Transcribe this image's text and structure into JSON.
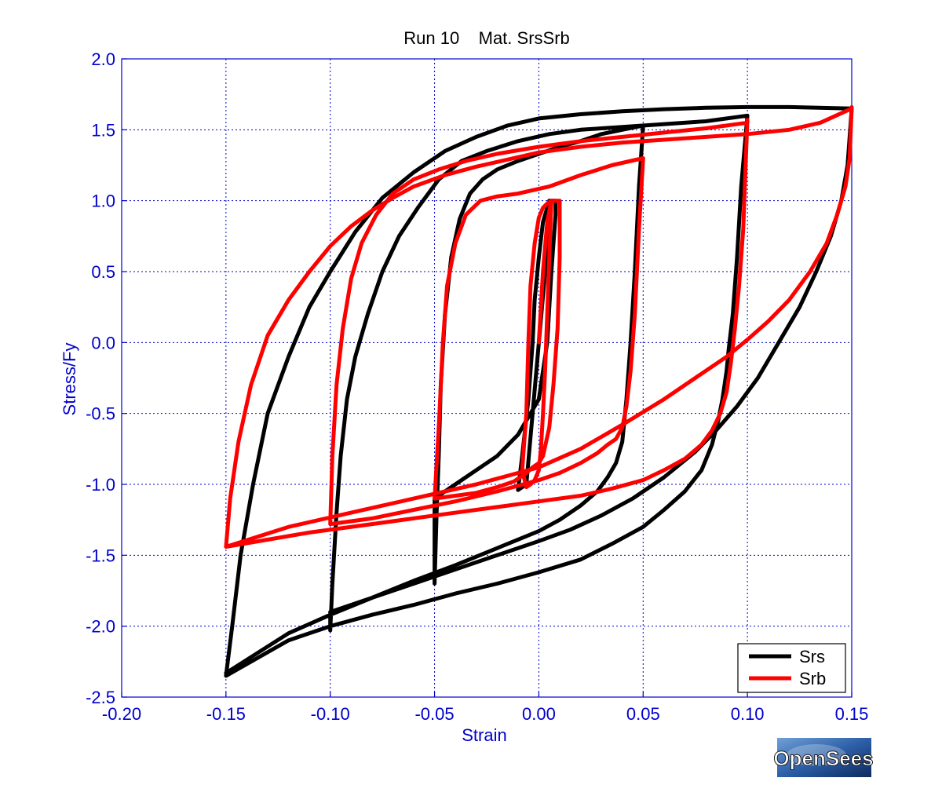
{
  "chart_data": {
    "type": "line",
    "title": "Run 10    Mat. SrsSrb",
    "xlabel": "Strain",
    "ylabel": "Stress/Fy",
    "xlim": [
      -0.2,
      0.15
    ],
    "ylim": [
      -2.5,
      2.0
    ],
    "x_ticks": [
      -0.2,
      -0.15,
      -0.1,
      -0.05,
      0.0,
      0.05,
      0.1,
      0.15
    ],
    "x_tick_labels": [
      "-0.20",
      "-0.15",
      "-0.10",
      "-0.05",
      "0.00",
      "0.05",
      "0.10",
      "0.15"
    ],
    "y_ticks": [
      2.0,
      1.5,
      1.0,
      0.5,
      0.0,
      -0.5,
      -1.0,
      -1.5,
      -2.0,
      -2.5
    ],
    "y_tick_labels": [
      "2.0",
      "1.5",
      "1.0",
      "0.5",
      "0.0",
      "-0.5",
      "-1.0",
      "-1.5",
      "-2.0",
      "-2.5"
    ],
    "grid": true,
    "legend_position": "bottom-right",
    "series": [
      {
        "name": "Srs",
        "color": "#000000",
        "x": [
          0.0,
          0.003,
          0.005,
          0.006,
          0.006,
          -0.006,
          -0.01,
          -0.01,
          -0.008,
          -0.005,
          -0.003,
          -0.002,
          0.0,
          0.002,
          0.004,
          0.005,
          0.006,
          0.007,
          0.008,
          0.008,
          0.006,
          0.004,
          0.0,
          -0.01,
          -0.02,
          -0.03,
          -0.04,
          -0.05,
          -0.05,
          -0.049,
          -0.048,
          -0.047,
          -0.045,
          -0.042,
          -0.038,
          -0.033,
          -0.027,
          -0.02,
          -0.01,
          0.0,
          0.01,
          0.02,
          0.03,
          0.04,
          0.05,
          0.048,
          0.046,
          0.044,
          0.042,
          0.04,
          0.037,
          0.033,
          0.028,
          0.02,
          0.01,
          0.0,
          -0.02,
          -0.04,
          -0.06,
          -0.08,
          -0.1,
          -0.1,
          -0.099,
          -0.097,
          -0.095,
          -0.092,
          -0.088,
          -0.082,
          -0.075,
          -0.067,
          -0.058,
          -0.048,
          -0.037,
          -0.025,
          -0.01,
          0.005,
          0.02,
          0.04,
          0.06,
          0.08,
          0.1,
          0.097,
          0.095,
          0.093,
          0.091,
          0.09,
          0.088,
          0.086,
          0.083,
          0.078,
          0.07,
          0.06,
          0.05,
          0.035,
          0.02,
          0.0,
          -0.02,
          -0.04,
          -0.06,
          -0.08,
          -0.1,
          -0.12,
          -0.15,
          -0.147,
          -0.143,
          -0.137,
          -0.13,
          -0.12,
          -0.11,
          -0.1,
          -0.088,
          -0.075,
          -0.06,
          -0.045,
          -0.03,
          -0.015,
          0.0,
          0.02,
          0.04,
          0.06,
          0.08,
          0.1,
          0.12,
          0.15,
          0.148,
          0.145,
          0.14,
          0.133,
          0.125,
          0.115,
          0.105,
          0.095,
          0.085,
          0.075,
          0.06,
          0.045,
          0.03,
          0.015,
          0.0,
          -0.02,
          -0.04,
          -0.06,
          -0.08,
          -0.1,
          -0.12,
          -0.15
        ],
        "y": [
          0.0,
          0.5,
          0.85,
          1.0,
          1.0,
          -1.0,
          -1.04,
          -1.04,
          -0.8,
          -0.4,
          0.0,
          0.3,
          0.6,
          0.85,
          0.95,
          1.0,
          1.0,
          1.0,
          1.0,
          0.9,
          0.5,
          0.0,
          -0.4,
          -0.65,
          -0.8,
          -0.9,
          -1.0,
          -1.1,
          -1.7,
          -1.2,
          -0.8,
          -0.3,
          0.2,
          0.6,
          0.87,
          1.05,
          1.15,
          1.22,
          1.28,
          1.33,
          1.38,
          1.42,
          1.47,
          1.5,
          1.53,
          1.1,
          0.5,
          0.0,
          -0.4,
          -0.7,
          -0.85,
          -0.95,
          -1.05,
          -1.15,
          -1.25,
          -1.33,
          -1.45,
          -1.57,
          -1.68,
          -1.8,
          -1.9,
          -2.03,
          -1.7,
          -1.2,
          -0.8,
          -0.4,
          -0.1,
          0.2,
          0.5,
          0.75,
          0.95,
          1.15,
          1.28,
          1.35,
          1.42,
          1.47,
          1.5,
          1.52,
          1.54,
          1.56,
          1.6,
          1.1,
          0.6,
          0.2,
          -0.05,
          -0.2,
          -0.4,
          -0.55,
          -0.72,
          -0.9,
          -1.05,
          -1.18,
          -1.3,
          -1.42,
          -1.53,
          -1.62,
          -1.7,
          -1.77,
          -1.85,
          -1.92,
          -2.0,
          -2.1,
          -2.35,
          -2.0,
          -1.5,
          -1.0,
          -0.5,
          -0.1,
          0.25,
          0.5,
          0.78,
          1.02,
          1.2,
          1.35,
          1.45,
          1.53,
          1.58,
          1.61,
          1.63,
          1.645,
          1.655,
          1.66,
          1.66,
          1.65,
          1.25,
          1.0,
          0.75,
          0.5,
          0.25,
          0.0,
          -0.25,
          -0.45,
          -0.62,
          -0.77,
          -0.95,
          -1.1,
          -1.22,
          -1.32,
          -1.4,
          -1.5,
          -1.6,
          -1.7,
          -1.8,
          -1.92,
          -2.05,
          -2.33
        ]
      },
      {
        "name": "Srb",
        "color": "#ff0000",
        "x": [
          0.0,
          0.002,
          0.004,
          0.006,
          0.006,
          0.005,
          0.004,
          0.003,
          0.002,
          0.001,
          0.0,
          -0.002,
          -0.004,
          -0.006,
          -0.008,
          -0.006,
          -0.005,
          -0.004,
          -0.002,
          0.0,
          0.002,
          0.004,
          0.006,
          0.008,
          0.009,
          0.01,
          0.01,
          0.009,
          0.007,
          0.005,
          0.002,
          0.0,
          -0.003,
          -0.006,
          -0.009,
          -0.012,
          -0.02,
          -0.03,
          -0.04,
          -0.05,
          -0.048,
          -0.046,
          -0.044,
          -0.04,
          -0.035,
          -0.028,
          -0.02,
          -0.01,
          0.005,
          0.02,
          0.035,
          0.05,
          0.05,
          0.048,
          0.046,
          0.044,
          0.042,
          0.04,
          0.037,
          0.033,
          0.028,
          0.02,
          0.01,
          0.0,
          -0.02,
          -0.04,
          -0.06,
          -0.08,
          -0.1,
          -0.1,
          -0.099,
          -0.097,
          -0.094,
          -0.09,
          -0.085,
          -0.078,
          -0.07,
          -0.06,
          -0.048,
          -0.035,
          -0.02,
          0.0,
          0.02,
          0.04,
          0.06,
          0.08,
          0.1,
          0.1,
          0.099,
          0.098,
          0.096,
          0.094,
          0.092,
          0.09,
          0.087,
          0.083,
          0.078,
          0.07,
          0.06,
          0.05,
          0.035,
          0.02,
          0.0,
          -0.02,
          -0.05,
          -0.08,
          -0.11,
          -0.15,
          -0.148,
          -0.144,
          -0.138,
          -0.13,
          -0.12,
          -0.11,
          -0.1,
          -0.09,
          -0.08,
          -0.07,
          -0.06,
          -0.045,
          -0.03,
          -0.015,
          0.0,
          0.02,
          0.04,
          0.06,
          0.08,
          0.1,
          0.12,
          0.135,
          0.15,
          0.15,
          0.149,
          0.147,
          0.143,
          0.138,
          0.13,
          0.12,
          0.11,
          0.1,
          0.09,
          0.075,
          0.06,
          0.04,
          0.02,
          0.0,
          -0.03,
          -0.06,
          -0.09,
          -0.12,
          -0.15
        ],
        "y": [
          0.0,
          0.5,
          0.85,
          1.0,
          1.0,
          0.6,
          0.2,
          -0.2,
          -0.5,
          -0.75,
          -0.9,
          -0.97,
          -1.0,
          -1.02,
          -0.9,
          -0.5,
          0.0,
          0.4,
          0.7,
          0.88,
          0.95,
          0.98,
          1.0,
          1.0,
          1.0,
          1.0,
          0.6,
          0.1,
          -0.3,
          -0.6,
          -0.8,
          -0.85,
          -0.88,
          -0.92,
          -0.95,
          -0.98,
          -1.02,
          -1.06,
          -1.08,
          -1.1,
          -0.6,
          0.0,
          0.4,
          0.7,
          0.9,
          1.0,
          1.03,
          1.05,
          1.1,
          1.18,
          1.25,
          1.3,
          1.3,
          0.8,
          0.2,
          -0.2,
          -0.45,
          -0.6,
          -0.68,
          -0.72,
          -0.78,
          -0.85,
          -0.92,
          -0.97,
          -1.05,
          -1.12,
          -1.18,
          -1.24,
          -1.28,
          -1.28,
          -0.8,
          -0.3,
          0.1,
          0.45,
          0.7,
          0.9,
          1.05,
          1.15,
          1.22,
          1.28,
          1.33,
          1.38,
          1.42,
          1.45,
          1.48,
          1.51,
          1.55,
          1.57,
          1.2,
          0.8,
          0.4,
          0.1,
          -0.15,
          -0.35,
          -0.5,
          -0.62,
          -0.72,
          -0.82,
          -0.9,
          -0.97,
          -1.03,
          -1.08,
          -1.12,
          -1.16,
          -1.22,
          -1.28,
          -1.34,
          -1.44,
          -1.1,
          -0.7,
          -0.3,
          0.05,
          0.3,
          0.5,
          0.68,
          0.82,
          0.93,
          1.02,
          1.1,
          1.18,
          1.24,
          1.29,
          1.34,
          1.38,
          1.41,
          1.43,
          1.45,
          1.47,
          1.5,
          1.55,
          1.65,
          1.66,
          1.3,
          1.1,
          0.9,
          0.7,
          0.5,
          0.3,
          0.15,
          0.02,
          -0.1,
          -0.25,
          -0.4,
          -0.58,
          -0.75,
          -0.88,
          -1.0,
          -1.1,
          -1.2,
          -1.3,
          -1.44
        ]
      }
    ]
  },
  "legend": {
    "items": [
      {
        "label": "Srs",
        "color": "#000000"
      },
      {
        "label": "Srb",
        "color": "#ff0000"
      }
    ]
  },
  "badge": {
    "text": "OpenSees"
  },
  "colors": {
    "axis": "#0000cc",
    "grid": "#0000cc",
    "background": "#ffffff"
  }
}
